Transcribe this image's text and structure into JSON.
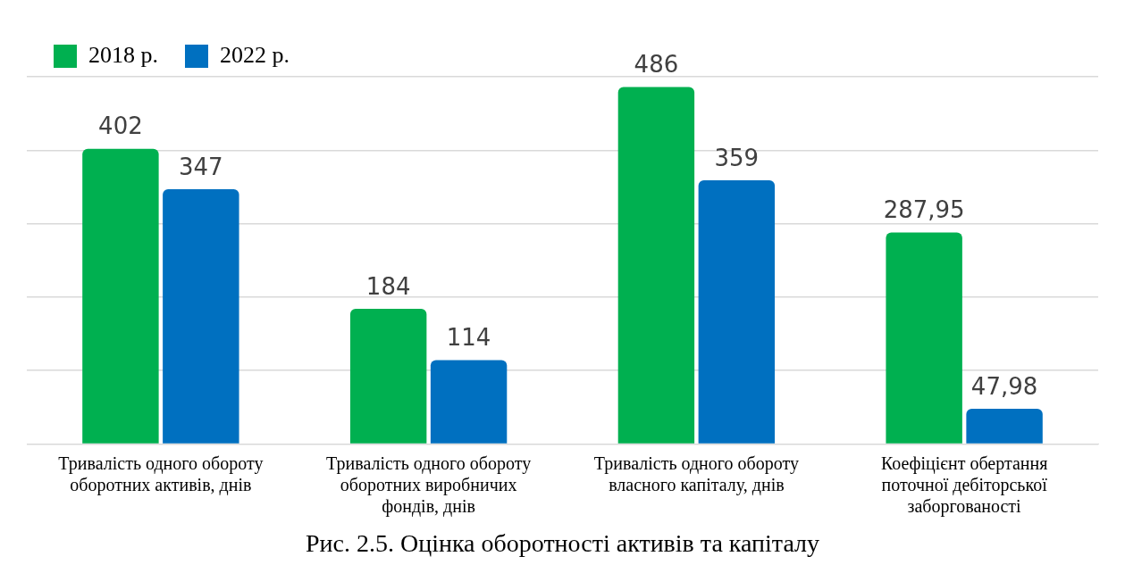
{
  "chart_data": {
    "type": "bar",
    "title": "Рис. 2.5. Оцінка оборотності активів та капіталу",
    "categories": [
      "Тривалість одного обороту оборотних активів, днів",
      "Тривалість одного обороту оборотних виробничих фондів, днів",
      "Тривалість одного обороту власного капіталу, днів",
      "Коефіцієнт обертання поточної дебіторської заборгованості"
    ],
    "series": [
      {
        "name": "2018 р.",
        "color": "#00b050",
        "values": [
          402,
          184,
          486,
          287.95
        ],
        "value_labels": [
          "402",
          "184",
          "486",
          "287,95"
        ]
      },
      {
        "name": "2022 р.",
        "color": "#0070c0",
        "values": [
          347,
          114,
          359,
          47.98
        ],
        "value_labels": [
          "347",
          "114",
          "359",
          "47,98"
        ]
      }
    ],
    "ylim": [
      0,
      500
    ],
    "yticks": [
      {
        "value": 0,
        "label": null
      },
      {
        "value": 100,
        "label": null
      },
      {
        "value": 200,
        "label": null
      },
      {
        "value": 300,
        "label": null
      },
      {
        "value": 400,
        "label": null
      },
      {
        "value": 500,
        "label": null
      }
    ],
    "tick_labels": "x",
    "grid": "y",
    "legend": "top left"
  }
}
